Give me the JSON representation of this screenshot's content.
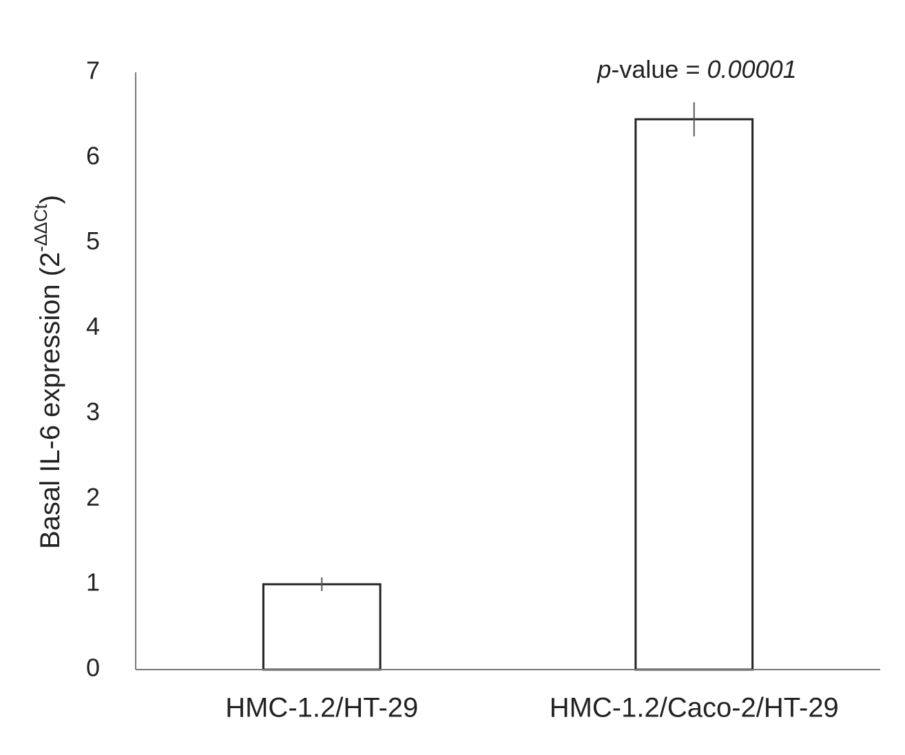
{
  "chart_data": {
    "type": "bar",
    "y_label": "Basal IL-6 expression (2",
    "y_label_sup": "-ΔΔCt",
    "y_label_end": ")",
    "annotation": {
      "italic_prefix": "p",
      "text": "-value = ",
      "italic_value": "0.00001"
    },
    "categories": [
      "HMC-1.2/HT-29",
      "HMC-1.2/Caco-2/HT-29"
    ],
    "values": [
      1.0,
      6.45
    ],
    "errors": [
      0.08,
      0.2
    ],
    "color": "#ffffff",
    "edge_color": "#222222",
    "ylim": [
      0,
      7
    ],
    "yticks": [
      0,
      1,
      2,
      3,
      4,
      5,
      6,
      7
    ],
    "grid": false
  }
}
